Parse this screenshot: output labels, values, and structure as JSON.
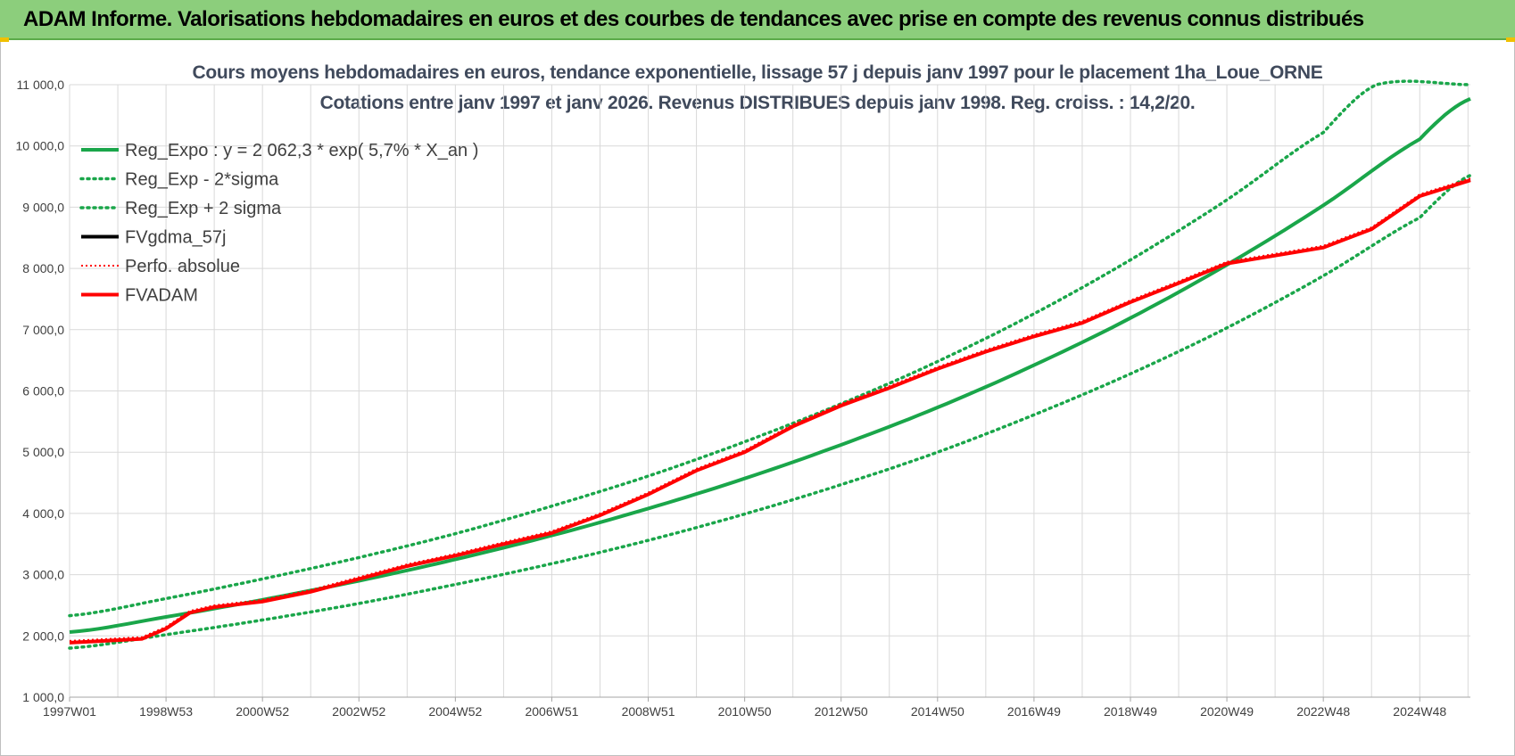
{
  "header": {
    "title": "ADAM Informe. Valorisations hebdomadaires en euros et des courbes de tendances avec prise en compte des revenus connus distribués"
  },
  "colors": {
    "header_bg": "#8cce7c",
    "trend": "#1aa64a",
    "fv": "#ff0000",
    "gdma": "#000000",
    "grid": "#d9d9d9"
  },
  "chart_data": {
    "type": "line",
    "title": "Cours moyens hebdomadaires en euros, tendance exponentielle, lissage 57 j depuis janv 1997  pour le placement 1ha_Loue_ORNE",
    "subtitle": "Cotations entre janv 1997 et janv 2026. Revenus DISTRIBUES depuis janv 1998.  Reg. croiss. : 14,2/20.",
    "xlabel": "",
    "ylabel": "",
    "ylim": [
      1000,
      11000
    ],
    "xlim": [
      1997.0,
      2026.05
    ],
    "y_ticks": [
      {
        "value": 1000,
        "label": "1 000,0"
      },
      {
        "value": 2000,
        "label": "2 000,0"
      },
      {
        "value": 3000,
        "label": "3 000,0"
      },
      {
        "value": 4000,
        "label": "4 000,0"
      },
      {
        "value": 5000,
        "label": "5 000,0"
      },
      {
        "value": 6000,
        "label": "6 000,0"
      },
      {
        "value": 7000,
        "label": "7 000,0"
      },
      {
        "value": 8000,
        "label": "8 000,0"
      },
      {
        "value": 9000,
        "label": "9 000,0"
      },
      {
        "value": 10000,
        "label": "10 000,0"
      },
      {
        "value": 11000,
        "label": "11 000,0"
      }
    ],
    "x_ticks": [
      {
        "x": 1997.0,
        "label": "1997W01"
      },
      {
        "x": 1999.0,
        "label": "1998W53"
      },
      {
        "x": 2001.0,
        "label": "2000W52"
      },
      {
        "x": 2003.0,
        "label": "2002W52"
      },
      {
        "x": 2005.0,
        "label": "2004W52"
      },
      {
        "x": 2007.0,
        "label": "2006W51"
      },
      {
        "x": 2009.0,
        "label": "2008W51"
      },
      {
        "x": 2011.0,
        "label": "2010W50"
      },
      {
        "x": 2013.0,
        "label": "2012W50"
      },
      {
        "x": 2015.0,
        "label": "2014W50"
      },
      {
        "x": 2017.0,
        "label": "2016W49"
      },
      {
        "x": 2019.0,
        "label": "2018W49"
      },
      {
        "x": 2021.0,
        "label": "2020W49"
      },
      {
        "x": 2023.0,
        "label": "2022W48"
      },
      {
        "x": 2025.0,
        "label": "2024W48"
      }
    ],
    "grid": true,
    "legend_position": "top-left",
    "legend": [
      {
        "name": "Reg_Expo : y = 2 062,3 * exp( 5,7% *  X_an )",
        "style": "solid-thick",
        "color": "#1aa64a"
      },
      {
        "name": "Reg_Exp - 2*sigma",
        "style": "dotted",
        "color": "#1aa64a"
      },
      {
        "name": "Reg_Exp + 2 sigma",
        "style": "dotted",
        "color": "#1aa64a"
      },
      {
        "name": "FVgdma_57j",
        "style": "solid",
        "color": "#000000"
      },
      {
        "name": "Perfo. absolue",
        "style": "dotted-thin",
        "color": "#ff0000"
      },
      {
        "name": "FVADAM",
        "style": "solid-thick",
        "color": "#ff0000"
      }
    ],
    "series": [
      {
        "name": "Reg_Expo : y = 2 062,3 * exp( 5,7% *  X_an )",
        "color": "#1aa64a",
        "style": "solid-thick",
        "x": [
          1997.0,
          1999.0,
          2001.0,
          2003.0,
          2005.0,
          2007.0,
          2009.0,
          2011.0,
          2013.0,
          2015.0,
          2017.0,
          2019.0,
          2021.0,
          2023.0,
          2025.0,
          2026.05
        ],
        "y": [
          2062,
          2310,
          2590,
          2900,
          3250,
          3640,
          4080,
          4570,
          5120,
          5730,
          6420,
          7190,
          8060,
          9030,
          10110,
          10770
        ]
      },
      {
        "name": "Reg_Exp - 2*sigma",
        "color": "#1aa64a",
        "style": "dotted",
        "x": [
          1997.0,
          1999.0,
          2001.0,
          2003.0,
          2005.0,
          2007.0,
          2009.0,
          2011.0,
          2013.0,
          2015.0,
          2017.0,
          2019.0,
          2021.0,
          2023.0,
          2025.0,
          2026.05
        ],
        "y": [
          1800,
          2020,
          2260,
          2530,
          2840,
          3180,
          3560,
          3990,
          4470,
          5000,
          5610,
          6280,
          7030,
          7880,
          8830,
          9520
        ]
      },
      {
        "name": "Reg_Exp + 2 sigma",
        "color": "#1aa64a",
        "style": "dotted",
        "x": [
          1997.0,
          1999.0,
          2001.0,
          2003.0,
          2005.0,
          2007.0,
          2009.0,
          2011.0,
          2013.0,
          2015.0,
          2017.0,
          2019.0,
          2021.0,
          2023.0,
          2024.1,
          2026.05
        ],
        "y": [
          2330,
          2610,
          2930,
          3280,
          3670,
          4120,
          4610,
          5170,
          5790,
          6480,
          7260,
          8140,
          9120,
          10220,
          11000,
          11000
        ]
      },
      {
        "name": "FVgdma_57j",
        "color": "#000000",
        "style": "solid",
        "x": [
          1997.0,
          1997.5,
          1998.0,
          1998.5,
          1999.0,
          1999.5,
          2000.0,
          2001.0,
          2002.0,
          2003.0,
          2004.0,
          2005.0,
          2006.0,
          2007.0,
          2008.0,
          2009.0,
          2010.0,
          2011.0,
          2012.0,
          2013.0,
          2014.0,
          2015.0,
          2016.0,
          2017.0,
          2018.0,
          2019.0,
          2020.0,
          2021.0,
          2022.0,
          2023.0,
          2024.0,
          2025.0,
          2026.05
        ],
        "y": [
          1890,
          1910,
          1930,
          1950,
          2120,
          2380,
          2470,
          2560,
          2720,
          2930,
          3140,
          3310,
          3500,
          3680,
          3970,
          4310,
          4700,
          5000,
          5420,
          5760,
          6050,
          6360,
          6640,
          6890,
          7110,
          7450,
          7760,
          8080,
          8210,
          8340,
          8640,
          9180,
          9440
        ]
      },
      {
        "name": "Perfo. absolue",
        "color": "#ff0000",
        "style": "dotted-thin",
        "x": [
          1997.0,
          1997.5,
          1998.0,
          1998.5,
          1999.0,
          1999.5,
          2000.0,
          2001.0,
          2002.0,
          2003.0,
          2004.0,
          2005.0,
          2006.0,
          2007.0,
          2008.0,
          2009.0,
          2010.0,
          2011.0,
          2012.0,
          2013.0,
          2014.0,
          2015.0,
          2016.0,
          2017.0,
          2018.0,
          2019.0,
          2020.0,
          2021.0,
          2022.0,
          2023.0,
          2024.0,
          2025.0,
          2026.05
        ],
        "y": [
          1890,
          1910,
          1930,
          1950,
          2120,
          2380,
          2470,
          2560,
          2720,
          2930,
          3140,
          3310,
          3500,
          3680,
          3970,
          4310,
          4700,
          5000,
          5420,
          5760,
          6050,
          6360,
          6640,
          6890,
          7110,
          7450,
          7760,
          8080,
          8210,
          8340,
          8640,
          9180,
          9440
        ]
      },
      {
        "name": "FVADAM",
        "color": "#ff0000",
        "style": "solid-thick",
        "x": [
          1997.0,
          1997.5,
          1998.0,
          1998.5,
          1999.0,
          1999.5,
          2000.0,
          2001.0,
          2002.0,
          2003.0,
          2004.0,
          2005.0,
          2006.0,
          2007.0,
          2008.0,
          2009.0,
          2010.0,
          2011.0,
          2012.0,
          2013.0,
          2014.0,
          2015.0,
          2016.0,
          2017.0,
          2018.0,
          2019.0,
          2020.0,
          2021.0,
          2022.0,
          2023.0,
          2024.0,
          2025.0,
          2026.05
        ],
        "y": [
          1890,
          1910,
          1930,
          1950,
          2120,
          2380,
          2470,
          2560,
          2720,
          2930,
          3140,
          3310,
          3500,
          3680,
          3970,
          4310,
          4700,
          5000,
          5420,
          5760,
          6050,
          6360,
          6640,
          6890,
          7110,
          7450,
          7760,
          8080,
          8210,
          8340,
          8640,
          9180,
          9440
        ]
      }
    ]
  }
}
